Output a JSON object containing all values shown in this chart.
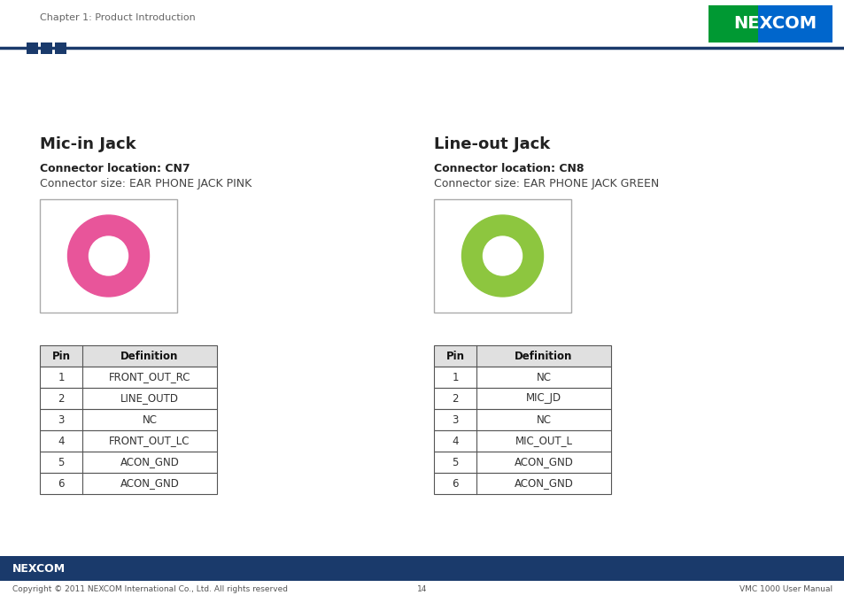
{
  "page_header_text": "Chapter 1: Product Introduction",
  "header_line_color": "#1a3a6b",
  "header_square_colors": [
    "#1a3a6b",
    "#1a3a6b",
    "#1a3a6b"
  ],
  "left_title": "Mic-in Jack",
  "left_connector_bold": "Connector location: CN7",
  "left_connector_size": "Connector size: EAR PHONE JACK PINK",
  "left_circle_color": "#e8559a",
  "left_table_pins": [
    "1",
    "2",
    "3",
    "4",
    "5",
    "6"
  ],
  "left_table_defs": [
    "FRONT_OUT_RC",
    "LINE_OUTD",
    "NC",
    "FRONT_OUT_LC",
    "ACON_GND",
    "ACON_GND"
  ],
  "right_title": "Line-out Jack",
  "right_connector_bold": "Connector location: CN8",
  "right_connector_size": "Connector size: EAR PHONE JACK GREEN",
  "right_circle_color": "#8dc63f",
  "right_table_pins": [
    "1",
    "2",
    "3",
    "4",
    "5",
    "6"
  ],
  "right_table_defs": [
    "NC",
    "MIC_JD",
    "NC",
    "MIC_OUT_L",
    "ACON_GND",
    "ACON_GND"
  ],
  "footer_bar_color": "#1a3a6b",
  "footer_copyright": "Copyright © 2011 NEXCOM International Co., Ltd. All rights reserved",
  "footer_page": "14",
  "footer_manual": "VMC 1000 User Manual",
  "bg_color": "#ffffff"
}
